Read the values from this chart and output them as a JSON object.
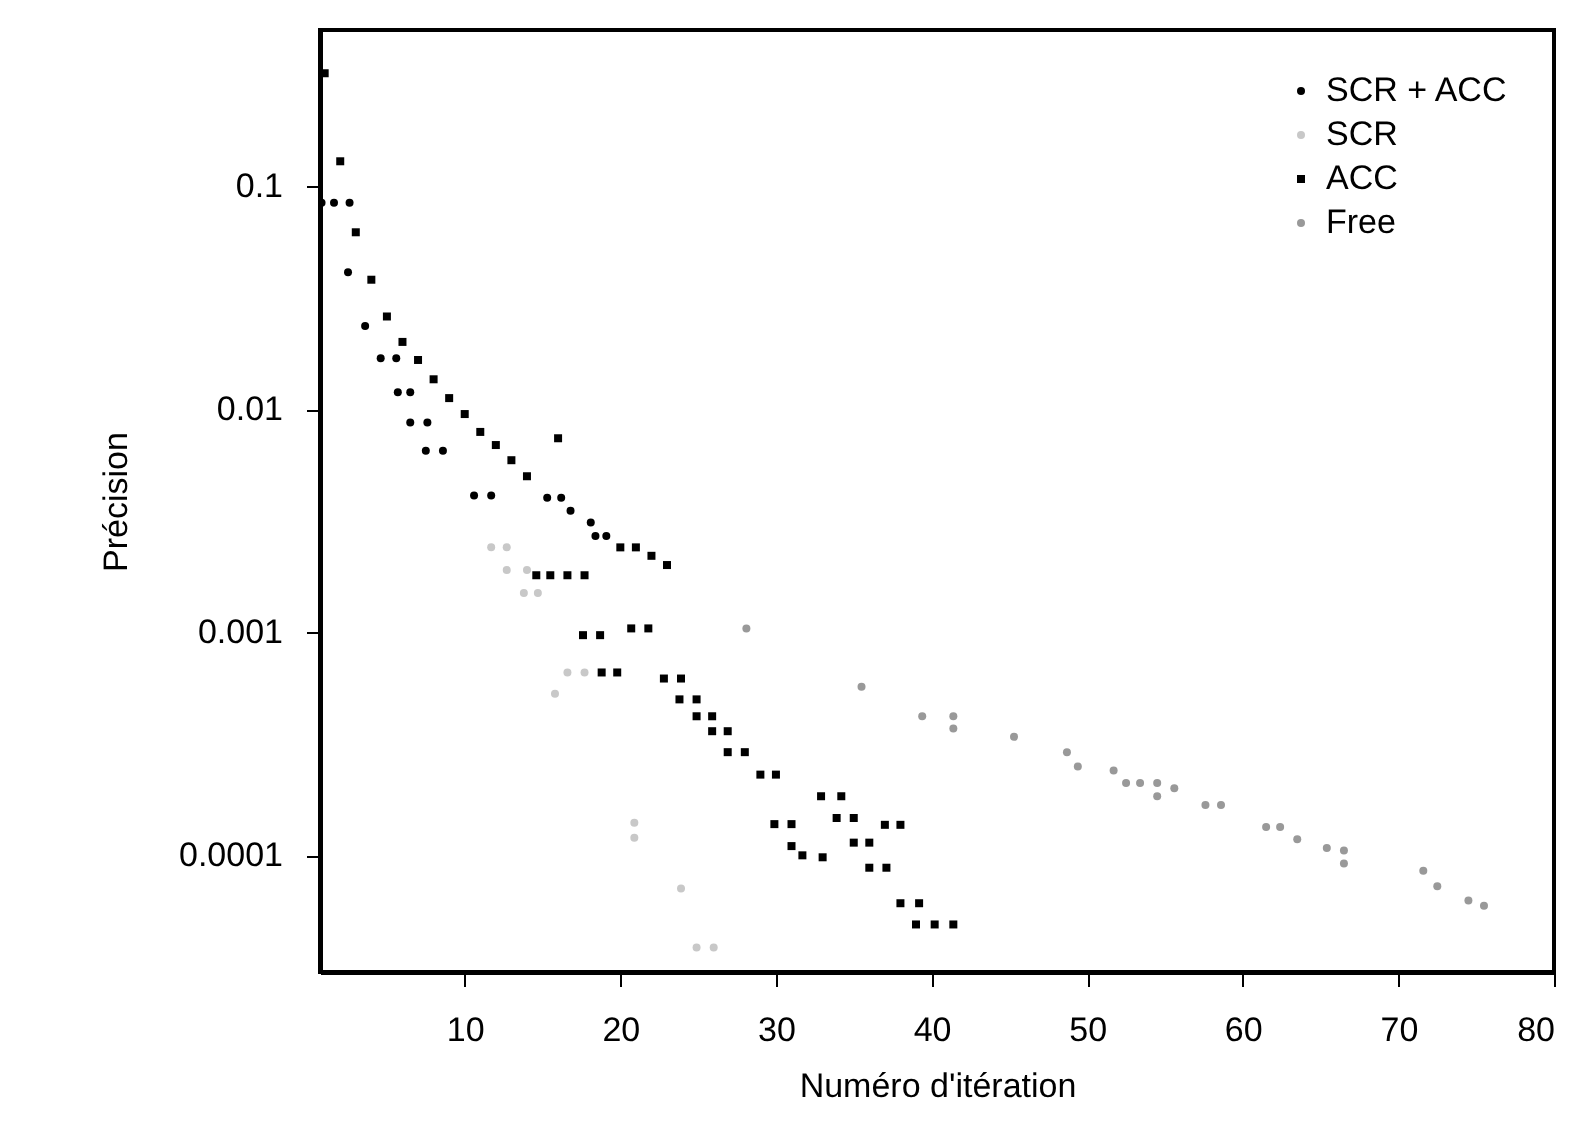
{
  "chart_data": {
    "type": "scatter",
    "xlabel": "Numéro d'itération",
    "ylabel": "Précision",
    "log": "y",
    "grid": false,
    "legend": "top right",
    "xlim": [
      0.7,
      80
    ],
    "xticks": [
      10,
      20,
      30,
      40,
      50,
      60,
      70,
      80
    ],
    "ylim": [
      3e-05,
      0.5
    ],
    "yticks": [
      0.1,
      0.01,
      0.001,
      0.0001
    ],
    "series": [
      {
        "name": "SCR + ACC",
        "color": "#000000",
        "marker": "circle",
        "x": [
          0.8,
          1.6,
          2.6,
          2.5,
          3.6,
          4.6,
          5.6,
          5.7,
          6.5,
          6.5,
          7.6,
          7.5,
          8.6,
          10.6,
          11.7,
          15.3,
          16.2,
          16.8,
          18.1,
          18.4,
          19.1
        ],
        "values": [
          0.084,
          0.084,
          0.084,
          0.041,
          0.0236,
          0.0169,
          0.0169,
          0.0119,
          0.0119,
          0.0087,
          0.0087,
          0.0065,
          0.0065,
          0.0041,
          0.0041,
          0.004,
          0.004,
          0.0035,
          0.0031,
          0.0027,
          0.0027
        ]
      },
      {
        "name": "SCR",
        "color": "#c8c8c8",
        "marker": "circle",
        "x": [
          11.7,
          12.7,
          12.7,
          14.0,
          13.8,
          14.7,
          15.8,
          16.6,
          17.7,
          20.9,
          20.9,
          23.9,
          24.9,
          26.0
        ],
        "values": [
          0.0024,
          0.0024,
          0.0019,
          0.0019,
          0.0015,
          0.0015,
          0.00053,
          0.00066,
          0.00066,
          0.00014,
          0.00012,
          7.1e-05,
          3.86e-05,
          3.86e-05
        ]
      },
      {
        "name": "ACC",
        "color": "#000000",
        "marker": "square",
        "x": [
          1,
          2,
          3,
          4,
          5,
          6,
          7,
          8,
          9,
          10,
          11,
          12,
          13,
          14,
          16,
          20,
          21,
          22,
          23,
          14.6,
          15.5,
          16.6,
          17.7,
          17.6,
          18.7,
          20.7,
          21.8,
          18.8,
          19.8,
          22.8,
          23.9,
          23.8,
          24.9,
          24.9,
          25.9,
          25.9,
          26.9,
          26.9,
          28.0,
          29,
          30,
          29.9,
          31,
          31,
          31.7,
          33,
          32.9,
          34.2,
          33.9,
          35,
          35,
          36,
          36,
          37.1,
          37,
          38,
          38,
          39.2,
          39,
          40.2,
          41.4
        ],
        "values": [
          0.32,
          0.129,
          0.062,
          0.038,
          0.026,
          0.02,
          0.0166,
          0.0136,
          0.0112,
          0.0095,
          0.0079,
          0.0069,
          0.0059,
          0.005,
          0.0074,
          0.0024,
          0.0024,
          0.0022,
          0.002,
          0.0018,
          0.0018,
          0.0018,
          0.0018,
          0.00097,
          0.00097,
          0.00104,
          0.00104,
          0.00066,
          0.00066,
          0.00062,
          0.00062,
          0.0005,
          0.0005,
          0.00042,
          0.00042,
          0.00036,
          0.00036,
          0.00029,
          0.00029,
          0.00023,
          0.00023,
          0.000138,
          0.000138,
          0.00011,
          0.0001,
          9.8e-05,
          0.000184,
          0.000184,
          0.000147,
          0.000147,
          0.000114,
          0.000114,
          8.8e-05,
          8.8e-05,
          0.000137,
          0.000137,
          6.1e-05,
          6.1e-05,
          4.9e-05,
          4.9e-05,
          4.9e-05
        ]
      },
      {
        "name": "Free",
        "color": "#999999",
        "marker": "circle",
        "x": [
          28.1,
          35.5,
          39.4,
          41.4,
          41.4,
          45.3,
          48.7,
          49.4,
          51.7,
          52.5,
          53.4,
          54.5,
          54.5,
          55.6,
          57.6,
          58.6,
          61.5,
          62.4,
          63.5,
          65.4,
          66.5,
          66.5,
          71.6,
          72.5,
          74.5,
          75.5
        ],
        "values": [
          0.00104,
          0.00057,
          0.00042,
          0.00042,
          0.00037,
          0.00034,
          0.00029,
          0.00025,
          0.00024,
          0.000211,
          0.000211,
          0.000211,
          0.000184,
          0.0002,
          0.000168,
          0.000168,
          0.000134,
          0.000134,
          0.000118,
          0.000108,
          0.000105,
          9.2e-05,
          8.54e-05,
          7.27e-05,
          6.28e-05,
          5.95e-05
        ]
      }
    ]
  }
}
